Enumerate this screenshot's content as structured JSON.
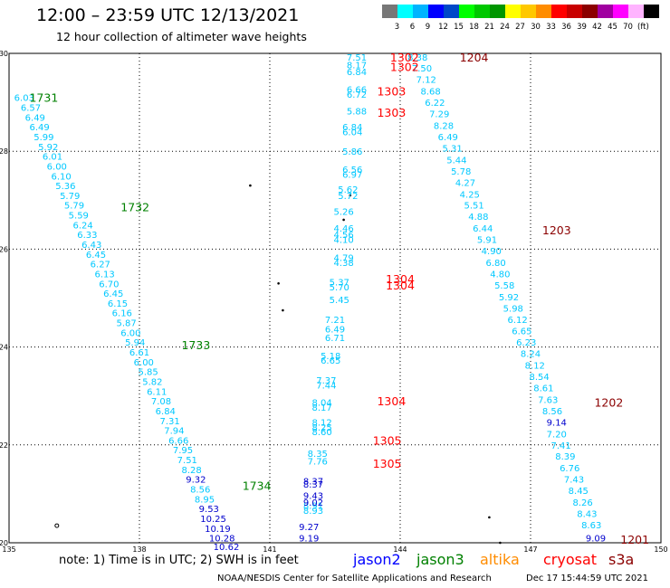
{
  "header": {
    "title": "12:00 – 23:59 UTC 12/13/2021",
    "subtitle": "12 hour collection of altimeter wave heights"
  },
  "legend": {
    "colors": [
      "#777777",
      "#00ffff",
      "#00b4ff",
      "#0000ff",
      "#0048c8",
      "#00ff00",
      "#00c800",
      "#009600",
      "#ffff00",
      "#ffc800",
      "#ff8c00",
      "#ff0000",
      "#c80000",
      "#8b0000",
      "#a000a0",
      "#ff00ff",
      "#ffb4ff",
      "#000000"
    ],
    "labels": [
      "3",
      "6",
      "9",
      "12",
      "15",
      "18",
      "21",
      "24",
      "27",
      "30",
      "33",
      "36",
      "39",
      "42",
      "45",
      "70"
    ],
    "unit": "(ft)"
  },
  "map": {
    "lon_range": [
      135,
      150
    ],
    "lat_range": [
      20,
      30
    ],
    "x_ticks": [
      "135",
      "138",
      "141",
      "144",
      "147",
      "150"
    ],
    "y_ticks": [
      "20",
      "22",
      "24",
      "26",
      "28",
      "30"
    ],
    "colors": {
      "cyan": "#00c8ff",
      "blue": "#0000cd",
      "green": "#008000",
      "red": "#ff0000",
      "darkred": "#8b0000"
    },
    "tracks": [
      {
        "color": "cyan",
        "points": [
          {
            "lon": 135.35,
            "lat": 29.1,
            "v": "6.03"
          },
          {
            "lon": 135.5,
            "lat": 28.9,
            "v": "6.57"
          },
          {
            "lon": 135.6,
            "lat": 28.7,
            "v": "6.49"
          },
          {
            "lon": 135.7,
            "lat": 28.5,
            "v": "6.49"
          },
          {
            "lon": 135.8,
            "lat": 28.3,
            "v": "5.99"
          },
          {
            "lon": 135.9,
            "lat": 28.1,
            "v": "5.92"
          },
          {
            "lon": 136.0,
            "lat": 27.9,
            "v": "6.01"
          },
          {
            "lon": 136.1,
            "lat": 27.7,
            "v": "6.00"
          },
          {
            "lon": 136.2,
            "lat": 27.5,
            "v": "6.10"
          },
          {
            "lon": 136.3,
            "lat": 27.3,
            "v": "5.36"
          },
          {
            "lon": 136.4,
            "lat": 27.1,
            "v": "5.79"
          },
          {
            "lon": 136.5,
            "lat": 26.9,
            "v": "5.79"
          },
          {
            "lon": 136.6,
            "lat": 26.7,
            "v": "5.59"
          },
          {
            "lon": 136.7,
            "lat": 26.5,
            "v": "6.24"
          },
          {
            "lon": 136.8,
            "lat": 26.3,
            "v": "6.33"
          },
          {
            "lon": 136.9,
            "lat": 26.1,
            "v": "6.43"
          },
          {
            "lon": 137.0,
            "lat": 25.9,
            "v": "6.45"
          },
          {
            "lon": 137.1,
            "lat": 25.7,
            "v": "6.27"
          },
          {
            "lon": 137.2,
            "lat": 25.5,
            "v": "6.13"
          },
          {
            "lon": 137.3,
            "lat": 25.3,
            "v": "6.70"
          },
          {
            "lon": 137.4,
            "lat": 25.1,
            "v": "6.45"
          },
          {
            "lon": 137.5,
            "lat": 24.9,
            "v": "6.15"
          },
          {
            "lon": 137.6,
            "lat": 24.7,
            "v": "6.16"
          },
          {
            "lon": 137.7,
            "lat": 24.5,
            "v": "5.87"
          },
          {
            "lon": 137.8,
            "lat": 24.3,
            "v": "6.00"
          },
          {
            "lon": 137.9,
            "lat": 24.1,
            "v": "5.94"
          },
          {
            "lon": 138.0,
            "lat": 23.9,
            "v": "6.61"
          },
          {
            "lon": 138.1,
            "lat": 23.7,
            "v": "6.00"
          },
          {
            "lon": 138.2,
            "lat": 23.5,
            "v": "5.85"
          },
          {
            "lon": 138.3,
            "lat": 23.3,
            "v": "5.82"
          },
          {
            "lon": 138.4,
            "lat": 23.1,
            "v": "6.11"
          },
          {
            "lon": 138.5,
            "lat": 22.9,
            "v": "7.08"
          },
          {
            "lon": 138.6,
            "lat": 22.7,
            "v": "6.84"
          },
          {
            "lon": 138.7,
            "lat": 22.5,
            "v": "7.31"
          },
          {
            "lon": 138.8,
            "lat": 22.3,
            "v": "7.94"
          },
          {
            "lon": 138.9,
            "lat": 22.1,
            "v": "6.66"
          },
          {
            "lon": 139.0,
            "lat": 21.9,
            "v": "7.95"
          },
          {
            "lon": 139.1,
            "lat": 21.7,
            "v": "7.51"
          },
          {
            "lon": 139.2,
            "lat": 21.5,
            "v": "8.28"
          },
          {
            "lon": 139.4,
            "lat": 21.1,
            "v": "8.56"
          },
          {
            "lon": 139.5,
            "lat": 20.9,
            "v": "8.95"
          }
        ]
      },
      {
        "color": "blue",
        "points": [
          {
            "lon": 139.3,
            "lat": 21.3,
            "v": "9.32"
          },
          {
            "lon": 139.6,
            "lat": 20.7,
            "v": "9.53"
          },
          {
            "lon": 139.7,
            "lat": 20.5,
            "v": "10.25"
          },
          {
            "lon": 139.8,
            "lat": 20.3,
            "v": "10.19"
          },
          {
            "lon": 139.9,
            "lat": 20.1,
            "v": "10.28"
          },
          {
            "lon": 140.0,
            "lat": 19.93,
            "v": "10.62"
          }
        ]
      },
      {
        "color": "cyan",
        "points": [
          {
            "lon": 143.0,
            "lat": 29.93,
            "v": "7.51"
          },
          {
            "lon": 143.0,
            "lat": 29.77,
            "v": "8.17"
          },
          {
            "lon": 143.0,
            "lat": 29.63,
            "v": "6.84"
          },
          {
            "lon": 143.0,
            "lat": 29.27,
            "v": "6.66"
          },
          {
            "lon": 143.0,
            "lat": 29.17,
            "v": "6.72"
          },
          {
            "lon": 143.0,
            "lat": 28.83,
            "v": "5.88"
          },
          {
            "lon": 142.9,
            "lat": 28.5,
            "v": "6.84"
          },
          {
            "lon": 142.9,
            "lat": 28.4,
            "v": "6.04"
          },
          {
            "lon": 142.9,
            "lat": 28.0,
            "v": "5.86"
          },
          {
            "lon": 142.9,
            "lat": 27.63,
            "v": "6.56"
          },
          {
            "lon": 142.9,
            "lat": 27.53,
            "v": "6.97"
          },
          {
            "lon": 142.8,
            "lat": 27.23,
            "v": "5.62"
          },
          {
            "lon": 142.8,
            "lat": 27.1,
            "v": "5.72"
          },
          {
            "lon": 142.7,
            "lat": 26.77,
            "v": "5.26"
          },
          {
            "lon": 142.7,
            "lat": 26.43,
            "v": "4.46"
          },
          {
            "lon": 142.7,
            "lat": 26.3,
            "v": "4.56"
          },
          {
            "lon": 142.7,
            "lat": 26.2,
            "v": "4.10"
          },
          {
            "lon": 142.7,
            "lat": 25.83,
            "v": "4.79"
          },
          {
            "lon": 142.7,
            "lat": 25.73,
            "v": "4.38"
          },
          {
            "lon": 142.6,
            "lat": 25.33,
            "v": "5.37"
          },
          {
            "lon": 142.6,
            "lat": 25.23,
            "v": "5.70"
          },
          {
            "lon": 142.6,
            "lat": 24.97,
            "v": "5.45"
          },
          {
            "lon": 142.5,
            "lat": 24.57,
            "v": "7.21"
          },
          {
            "lon": 142.5,
            "lat": 24.37,
            "v": "6.49"
          },
          {
            "lon": 142.5,
            "lat": 24.2,
            "v": "6.71"
          },
          {
            "lon": 142.4,
            "lat": 23.83,
            "v": "5.18"
          },
          {
            "lon": 142.4,
            "lat": 23.73,
            "v": "6.65"
          },
          {
            "lon": 142.3,
            "lat": 23.33,
            "v": "7.37"
          },
          {
            "lon": 142.3,
            "lat": 23.23,
            "v": "7.44"
          },
          {
            "lon": 142.2,
            "lat": 22.87,
            "v": "8.04"
          },
          {
            "lon": 142.2,
            "lat": 22.77,
            "v": "8.17"
          },
          {
            "lon": 142.2,
            "lat": 22.47,
            "v": "8.12"
          },
          {
            "lon": 142.2,
            "lat": 22.37,
            "v": "8.25"
          },
          {
            "lon": 142.2,
            "lat": 22.27,
            "v": "8.60"
          },
          {
            "lon": 142.1,
            "lat": 21.83,
            "v": "8.35"
          },
          {
            "lon": 142.1,
            "lat": 21.67,
            "v": "7.76"
          },
          {
            "lon": 142.0,
            "lat": 20.77,
            "v": "8.91"
          },
          {
            "lon": 142.0,
            "lat": 20.67,
            "v": "8.93"
          }
        ]
      },
      {
        "color": "blue",
        "points": [
          {
            "lon": 142.0,
            "lat": 21.27,
            "v": "8.37"
          },
          {
            "lon": 142.0,
            "lat": 21.2,
            "v": "8.37"
          },
          {
            "lon": 142.0,
            "lat": 20.97,
            "v": "9.43"
          },
          {
            "lon": 142.0,
            "lat": 20.83,
            "v": "9.02"
          },
          {
            "lon": 141.9,
            "lat": 20.33,
            "v": "9.27"
          },
          {
            "lon": 141.9,
            "lat": 20.1,
            "v": "9.19"
          }
        ]
      },
      {
        "color": "cyan",
        "points": [
          {
            "lon": 144.4,
            "lat": 29.93,
            "v": "8.38"
          },
          {
            "lon": 144.5,
            "lat": 29.7,
            "v": "7.50"
          },
          {
            "lon": 144.6,
            "lat": 29.47,
            "v": "7.12"
          },
          {
            "lon": 144.7,
            "lat": 29.23,
            "v": "8.68"
          },
          {
            "lon": 144.8,
            "lat": 29.0,
            "v": "6.22"
          },
          {
            "lon": 144.9,
            "lat": 28.77,
            "v": "7.29"
          },
          {
            "lon": 145.0,
            "lat": 28.53,
            "v": "8.28"
          },
          {
            "lon": 145.1,
            "lat": 28.3,
            "v": "6.49"
          },
          {
            "lon": 145.2,
            "lat": 28.07,
            "v": "5.31"
          },
          {
            "lon": 145.3,
            "lat": 27.83,
            "v": "5.44"
          },
          {
            "lon": 145.4,
            "lat": 27.6,
            "v": "5.78"
          },
          {
            "lon": 145.5,
            "lat": 27.37,
            "v": "4.27"
          },
          {
            "lon": 145.6,
            "lat": 27.13,
            "v": "4.25"
          },
          {
            "lon": 145.7,
            "lat": 26.9,
            "v": "5.51"
          },
          {
            "lon": 145.8,
            "lat": 26.67,
            "v": "4.88"
          },
          {
            "lon": 145.9,
            "lat": 26.43,
            "v": "6.44"
          },
          {
            "lon": 146.0,
            "lat": 26.2,
            "v": "5.91"
          },
          {
            "lon": 146.1,
            "lat": 25.97,
            "v": "4.90"
          },
          {
            "lon": 146.2,
            "lat": 25.73,
            "v": "6.80"
          },
          {
            "lon": 146.3,
            "lat": 25.5,
            "v": "4.80"
          },
          {
            "lon": 146.4,
            "lat": 25.27,
            "v": "5.58"
          },
          {
            "lon": 146.5,
            "lat": 25.03,
            "v": "5.92"
          },
          {
            "lon": 146.6,
            "lat": 24.8,
            "v": "5.98"
          },
          {
            "lon": 146.7,
            "lat": 24.57,
            "v": "6.12"
          },
          {
            "lon": 146.8,
            "lat": 24.33,
            "v": "6.65"
          },
          {
            "lon": 146.9,
            "lat": 24.1,
            "v": "6.23"
          },
          {
            "lon": 147.0,
            "lat": 23.87,
            "v": "8.24"
          },
          {
            "lon": 147.1,
            "lat": 23.63,
            "v": "8.12"
          },
          {
            "lon": 147.2,
            "lat": 23.4,
            "v": "8.54"
          },
          {
            "lon": 147.3,
            "lat": 23.17,
            "v": "8.61"
          },
          {
            "lon": 147.4,
            "lat": 22.93,
            "v": "7.63"
          },
          {
            "lon": 147.5,
            "lat": 22.7,
            "v": "8.56"
          },
          {
            "lon": 147.6,
            "lat": 22.23,
            "v": "7.20"
          },
          {
            "lon": 147.7,
            "lat": 22.0,
            "v": "7.41"
          },
          {
            "lon": 147.8,
            "lat": 21.77,
            "v": "8.39"
          },
          {
            "lon": 147.9,
            "lat": 21.53,
            "v": "6.76"
          },
          {
            "lon": 148.0,
            "lat": 21.3,
            "v": "7.43"
          },
          {
            "lon": 148.1,
            "lat": 21.07,
            "v": "8.45"
          },
          {
            "lon": 148.2,
            "lat": 20.83,
            "v": "8.26"
          },
          {
            "lon": 148.3,
            "lat": 20.6,
            "v": "8.43"
          },
          {
            "lon": 148.4,
            "lat": 20.37,
            "v": "8.63"
          }
        ]
      },
      {
        "color": "blue",
        "points": [
          {
            "lon": 147.6,
            "lat": 22.47,
            "v": "9.14"
          },
          {
            "lon": 148.5,
            "lat": 20.1,
            "v": "9.09"
          }
        ]
      }
    ],
    "times": [
      {
        "color": "green",
        "lon": 135.8,
        "lat": 29.1,
        "v": "1731"
      },
      {
        "color": "green",
        "lon": 137.9,
        "lat": 26.87,
        "v": "1732"
      },
      {
        "color": "green",
        "lon": 139.3,
        "lat": 24.05,
        "v": "1733"
      },
      {
        "color": "green",
        "lon": 140.7,
        "lat": 21.17,
        "v": "1734"
      },
      {
        "color": "red",
        "lon": 144.1,
        "lat": 29.93,
        "v": "1302"
      },
      {
        "color": "red",
        "lon": 144.1,
        "lat": 29.73,
        "v": "1302"
      },
      {
        "color": "red",
        "lon": 143.8,
        "lat": 29.23,
        "v": "1303"
      },
      {
        "color": "red",
        "lon": 143.8,
        "lat": 28.8,
        "v": "1303"
      },
      {
        "color": "red",
        "lon": 144.0,
        "lat": 25.4,
        "v": "1304"
      },
      {
        "color": "red",
        "lon": 144.0,
        "lat": 25.27,
        "v": "1304"
      },
      {
        "color": "red",
        "lon": 143.8,
        "lat": 22.9,
        "v": "1304"
      },
      {
        "color": "red",
        "lon": 143.7,
        "lat": 22.1,
        "v": "1305"
      },
      {
        "color": "red",
        "lon": 143.7,
        "lat": 21.63,
        "v": "1305"
      },
      {
        "color": "darkred",
        "lon": 145.7,
        "lat": 29.93,
        "v": "1204"
      },
      {
        "color": "darkred",
        "lon": 147.6,
        "lat": 26.4,
        "v": "1203"
      },
      {
        "color": "darkred",
        "lon": 148.8,
        "lat": 22.87,
        "v": "1202"
      },
      {
        "color": "darkred",
        "lon": 149.4,
        "lat": 20.07,
        "v": "1201"
      }
    ],
    "land_marks": [
      {
        "lon": 140.55,
        "lat": 27.3
      },
      {
        "lon": 142.85,
        "lat": 27.1
      },
      {
        "lon": 142.7,
        "lat": 26.6
      },
      {
        "lon": 141.2,
        "lat": 25.3
      },
      {
        "lon": 141.3,
        "lat": 24.75
      },
      {
        "lon": 146.05,
        "lat": 20.52
      },
      {
        "lon": 146.3,
        "lat": 20.0
      }
    ],
    "open_marks": [
      {
        "lon": 136.1,
        "lat": 20.35
      }
    ]
  },
  "footer": {
    "note": "note:  1) Time is in UTC;  2) SWH is in feet",
    "satellites": [
      {
        "name": "jason2",
        "color": "#0000ff",
        "x": 390
      },
      {
        "name": "jason3",
        "color": "#008000",
        "x": 460
      },
      {
        "name": "altika",
        "color": "#ff8c00",
        "x": 530
      },
      {
        "name": "cryosat",
        "color": "#ff0000",
        "x": 600
      },
      {
        "name": "s3a",
        "color": "#8b0000",
        "x": 672
      }
    ],
    "credit": "NOAA/NESDIS Center for Satellite Applications and Research",
    "timestamp": "Dec 17 15:44:59 UTC 2021"
  }
}
